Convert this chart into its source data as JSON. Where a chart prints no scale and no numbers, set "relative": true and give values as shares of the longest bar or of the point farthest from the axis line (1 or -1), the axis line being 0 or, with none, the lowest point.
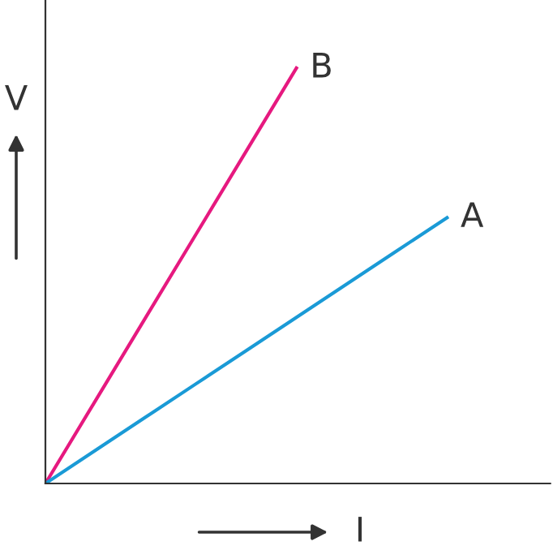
{
  "chart_data": {
    "type": "line",
    "relative": true,
    "xlabel": "I",
    "ylabel": "V",
    "marker": "none",
    "line_style": "solid",
    "categories": [
      null,
      null,
      null,
      null,
      null,
      null,
      null,
      null,
      null
    ],
    "series": [
      {
        "name": "B",
        "color": "#e6197f",
        "values": [
          0,
          0.2,
          0.4,
          0.6,
          0.8,
          1,
          null,
          null,
          null
        ]
      },
      {
        "name": "A",
        "color": "#1a9ad6",
        "values": [
          0,
          0.08,
          0.16,
          0.24,
          0.32,
          0.4,
          0.48,
          0.56,
          0.64
        ]
      }
    ]
  }
}
